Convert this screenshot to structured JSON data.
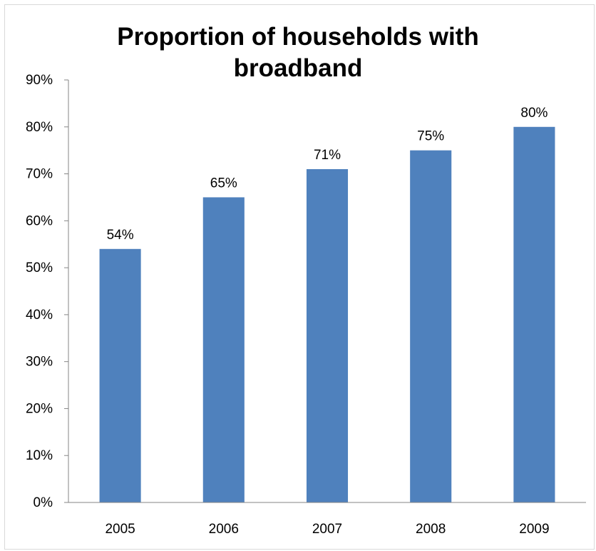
{
  "chart_data": {
    "type": "bar",
    "title_lines": [
      "Proportion of households with",
      "broadband"
    ],
    "categories": [
      "2005",
      "2006",
      "2007",
      "2008",
      "2009"
    ],
    "values": [
      54,
      65,
      71,
      75,
      80
    ],
    "data_labels": [
      "54%",
      "65%",
      "71%",
      "75%",
      "80%"
    ],
    "y_ticks": [
      "0%",
      "10%",
      "20%",
      "30%",
      "40%",
      "50%",
      "60%",
      "70%",
      "80%",
      "90%"
    ],
    "ylim": [
      0,
      90
    ],
    "xlabel": "",
    "ylabel": "",
    "grid": false,
    "legend": "none",
    "bar_color": "#4f81bd"
  }
}
